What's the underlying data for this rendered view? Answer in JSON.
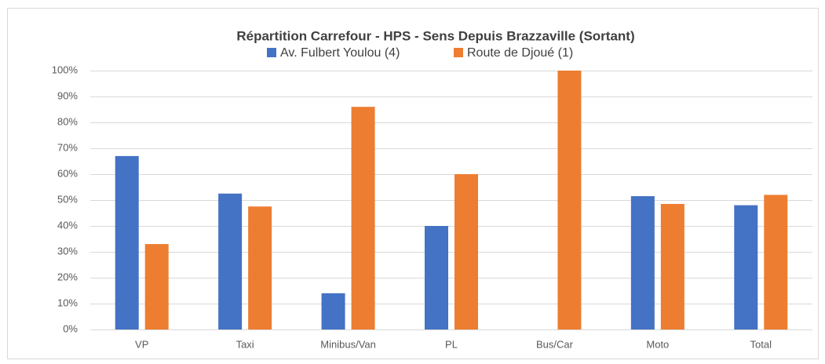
{
  "chart_data": {
    "type": "bar",
    "title": "Répartition Carrefour - HPS - Sens Depuis Brazzaville (Sortant)",
    "categories": [
      "VP",
      "Taxi",
      "Minibus/Van",
      "PL",
      "Bus/Car",
      "Moto",
      "Total"
    ],
    "series": [
      {
        "name": "Av. Fulbert Youlou (4)",
        "color": "#4472c4",
        "values": [
          67,
          52.5,
          14,
          40,
          0,
          51.5,
          48
        ]
      },
      {
        "name": "Route de Djoué (1)",
        "color": "#ed7d31",
        "values": [
          33,
          47.5,
          86,
          60,
          100,
          48.5,
          52
        ]
      }
    ],
    "ylim": [
      0,
      100
    ],
    "yticks": [
      {
        "value": 0,
        "label": "0%"
      },
      {
        "value": 10,
        "label": "10%"
      },
      {
        "value": 20,
        "label": "20%"
      },
      {
        "value": 30,
        "label": "30%"
      },
      {
        "value": 40,
        "label": "40%"
      },
      {
        "value": 50,
        "label": "50%"
      },
      {
        "value": 60,
        "label": "60%"
      },
      {
        "value": 70,
        "label": "70%"
      },
      {
        "value": 80,
        "label": "80%"
      },
      {
        "value": 90,
        "label": "90%"
      },
      {
        "value": 100,
        "label": "100%"
      }
    ],
    "grid": true,
    "legend": "top"
  }
}
